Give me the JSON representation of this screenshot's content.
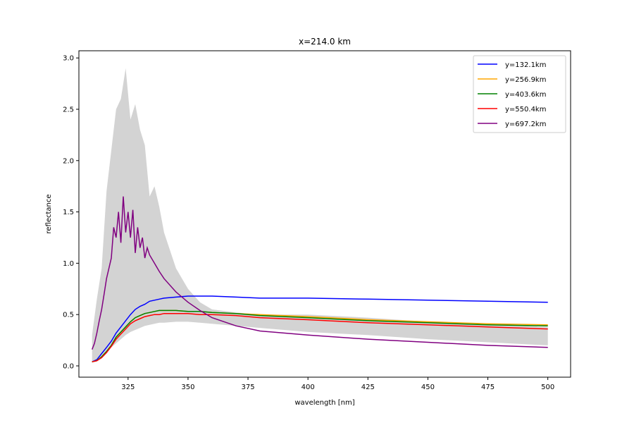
{
  "chart_data": {
    "type": "line",
    "title": "x=214.0 km",
    "xlabel": "wavelength [nm]",
    "ylabel": "reflectance",
    "xlim": [
      304.5,
      509.5
    ],
    "ylim": [
      -0.11,
      3.07
    ],
    "xticks": [
      325,
      350,
      375,
      400,
      425,
      450,
      475,
      500
    ],
    "xtick_labels": [
      "325",
      "350",
      "375",
      "400",
      "425",
      "450",
      "475",
      "500"
    ],
    "yticks": [
      0.0,
      0.5,
      1.0,
      1.5,
      2.0,
      2.5,
      3.0
    ],
    "ytick_labels": [
      "0.0",
      "0.5",
      "1.0",
      "1.5",
      "2.0",
      "2.5",
      "3.0"
    ],
    "grid": false,
    "legend_position": "top-right",
    "band": {
      "color": "#d3d3d3",
      "x": [
        310,
        312,
        314,
        316,
        318,
        320,
        322,
        324,
        326,
        328,
        330,
        332,
        334,
        336,
        338,
        340,
        345,
        350,
        355,
        360,
        370,
        380,
        400,
        425,
        450,
        475,
        500
      ],
      "lower": [
        0.03,
        0.06,
        0.1,
        0.14,
        0.18,
        0.22,
        0.26,
        0.3,
        0.33,
        0.35,
        0.37,
        0.39,
        0.4,
        0.41,
        0.42,
        0.42,
        0.43,
        0.43,
        0.42,
        0.41,
        0.39,
        0.37,
        0.33,
        0.3,
        0.26,
        0.23,
        0.2
      ],
      "upper": [
        0.3,
        0.65,
        0.95,
        1.7,
        2.1,
        2.5,
        2.6,
        2.9,
        2.4,
        2.55,
        2.3,
        2.15,
        1.65,
        1.75,
        1.55,
        1.3,
        0.95,
        0.75,
        0.62,
        0.55,
        0.52,
        0.5,
        0.5,
        0.47,
        0.43,
        0.4,
        0.38
      ]
    },
    "series": [
      {
        "name": "y=132.1km",
        "color": "#0000ff",
        "x": [
          310,
          312,
          314,
          316,
          318,
          320,
          322,
          324,
          326,
          328,
          330,
          332,
          334,
          336,
          338,
          340,
          345,
          350,
          355,
          360,
          370,
          380,
          400,
          425,
          450,
          475,
          500
        ],
        "y": [
          0.04,
          0.06,
          0.12,
          0.18,
          0.24,
          0.32,
          0.38,
          0.44,
          0.5,
          0.55,
          0.58,
          0.6,
          0.63,
          0.64,
          0.65,
          0.66,
          0.67,
          0.68,
          0.68,
          0.68,
          0.67,
          0.66,
          0.66,
          0.65,
          0.64,
          0.63,
          0.62
        ]
      },
      {
        "name": "y=256.9km",
        "color": "#ffa500",
        "x": [
          310,
          312,
          314,
          316,
          318,
          320,
          322,
          324,
          326,
          328,
          330,
          332,
          334,
          336,
          338,
          340,
          345,
          350,
          355,
          360,
          370,
          380,
          400,
          425,
          450,
          475,
          500
        ],
        "y": [
          0.04,
          0.05,
          0.09,
          0.14,
          0.2,
          0.28,
          0.33,
          0.38,
          0.43,
          0.47,
          0.49,
          0.51,
          0.52,
          0.53,
          0.54,
          0.54,
          0.54,
          0.53,
          0.53,
          0.52,
          0.51,
          0.5,
          0.48,
          0.45,
          0.43,
          0.41,
          0.4
        ]
      },
      {
        "name": "y=403.6km",
        "color": "#008000",
        "x": [
          310,
          312,
          314,
          316,
          318,
          320,
          322,
          324,
          326,
          328,
          330,
          332,
          334,
          336,
          338,
          340,
          345,
          350,
          355,
          360,
          370,
          380,
          400,
          425,
          450,
          475,
          500
        ],
        "y": [
          0.04,
          0.05,
          0.09,
          0.14,
          0.2,
          0.28,
          0.33,
          0.38,
          0.43,
          0.47,
          0.49,
          0.51,
          0.52,
          0.53,
          0.54,
          0.54,
          0.54,
          0.53,
          0.53,
          0.52,
          0.51,
          0.49,
          0.47,
          0.44,
          0.42,
          0.4,
          0.39
        ]
      },
      {
        "name": "y=550.4km",
        "color": "#ff0000",
        "x": [
          310,
          312,
          314,
          316,
          318,
          320,
          322,
          324,
          326,
          328,
          330,
          332,
          334,
          336,
          338,
          340,
          345,
          350,
          355,
          360,
          370,
          380,
          400,
          425,
          450,
          475,
          500
        ],
        "y": [
          0.04,
          0.05,
          0.08,
          0.13,
          0.19,
          0.26,
          0.31,
          0.36,
          0.41,
          0.44,
          0.46,
          0.48,
          0.49,
          0.5,
          0.5,
          0.51,
          0.51,
          0.51,
          0.5,
          0.5,
          0.49,
          0.47,
          0.45,
          0.42,
          0.4,
          0.38,
          0.36
        ]
      },
      {
        "name": "y=697.2km",
        "color": "#800080",
        "x": [
          310,
          311,
          312,
          313,
          314,
          315,
          316,
          317,
          318,
          319,
          320,
          321,
          322,
          323,
          324,
          325,
          326,
          327,
          328,
          329,
          330,
          331,
          332,
          333,
          334,
          336,
          338,
          340,
          345,
          350,
          355,
          360,
          370,
          380,
          400,
          425,
          450,
          475,
          500
        ],
        "y": [
          0.16,
          0.22,
          0.32,
          0.44,
          0.55,
          0.7,
          0.85,
          0.95,
          1.05,
          1.35,
          1.25,
          1.5,
          1.2,
          1.65,
          1.3,
          1.5,
          1.25,
          1.52,
          1.1,
          1.35,
          1.15,
          1.25,
          1.05,
          1.15,
          1.08,
          1.0,
          0.92,
          0.85,
          0.72,
          0.62,
          0.54,
          0.47,
          0.39,
          0.34,
          0.3,
          0.26,
          0.23,
          0.2,
          0.18
        ]
      }
    ]
  }
}
